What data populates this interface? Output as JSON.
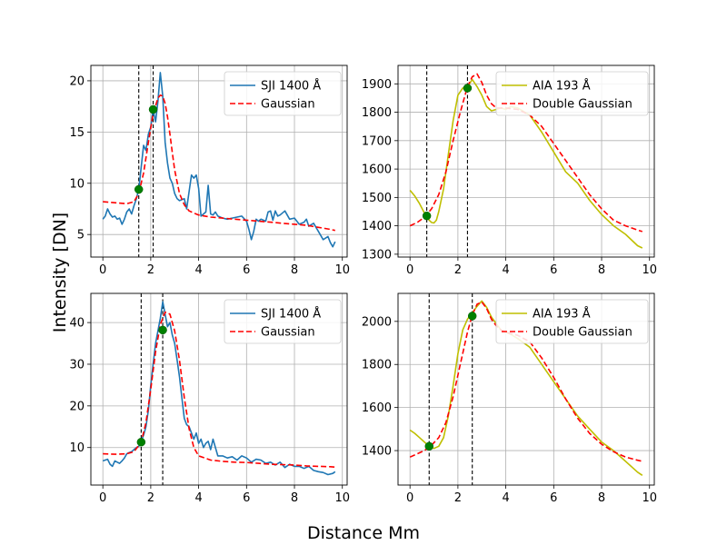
{
  "figure": {
    "xlabel": "Distance Mm",
    "ylabel": "Intensity [DN]"
  },
  "chart_data": [
    {
      "type": "line",
      "panel": "top-left",
      "xlim": [
        -0.5,
        10.2
      ],
      "ylim": [
        2.8,
        21.5
      ],
      "xticks": [
        0,
        2,
        4,
        6,
        8,
        10
      ],
      "yticks": [
        5,
        10,
        15,
        20
      ],
      "grid": true,
      "legend_position": "top-right",
      "series": [
        {
          "name": "SJI 1400 Å",
          "style": "solid",
          "color": "#1f77b4",
          "x": [
            0,
            0.1,
            0.2,
            0.3,
            0.4,
            0.5,
            0.6,
            0.7,
            0.8,
            0.9,
            1.0,
            1.1,
            1.2,
            1.3,
            1.4,
            1.5,
            1.6,
            1.7,
            1.8,
            1.9,
            2.0,
            2.1,
            2.2,
            2.3,
            2.4,
            2.5,
            2.6,
            2.7,
            2.8,
            2.9,
            3.0,
            3.1,
            3.2,
            3.3,
            3.4,
            3.5,
            3.6,
            3.7,
            3.8,
            3.9,
            4.0,
            4.1,
            4.2,
            4.3,
            4.4,
            4.5,
            4.6,
            4.7,
            4.8,
            5.0,
            5.2,
            5.4,
            5.6,
            5.8,
            6.0,
            6.1,
            6.2,
            6.3,
            6.4,
            6.5,
            6.6,
            6.7,
            6.8,
            6.9,
            7.0,
            7.1,
            7.2,
            7.3,
            7.4,
            7.6,
            7.8,
            8.0,
            8.2,
            8.4,
            8.5,
            8.6,
            8.8,
            9.0,
            9.2,
            9.4,
            9.5,
            9.6,
            9.7
          ],
          "y": [
            6.5,
            6.8,
            7.5,
            7.0,
            6.7,
            6.8,
            6.5,
            6.6,
            6.0,
            6.5,
            7.2,
            7.5,
            7.0,
            7.8,
            8.5,
            9.4,
            11.5,
            13.7,
            13.2,
            14.8,
            15.5,
            17.2,
            16.0,
            18.0,
            20.8,
            18.5,
            14.0,
            12.0,
            10.5,
            10.0,
            9.0,
            8.5,
            8.3,
            8.4,
            8.5,
            7.5,
            9.2,
            10.8,
            10.5,
            10.8,
            9.5,
            6.8,
            7.0,
            7.2,
            9.8,
            7.0,
            6.9,
            7.2,
            6.8,
            6.6,
            6.5,
            6.6,
            6.7,
            6.8,
            6.3,
            5.5,
            4.5,
            5.3,
            6.5,
            6.3,
            6.5,
            6.4,
            6.3,
            7.2,
            7.3,
            6.4,
            7.3,
            6.8,
            6.9,
            7.3,
            6.5,
            6.6,
            6.0,
            6.2,
            6.5,
            5.8,
            6.1,
            5.3,
            4.5,
            4.8,
            4.2,
            3.8,
            4.3
          ]
        },
        {
          "name": "Gaussian",
          "style": "dashed",
          "color": "#ff0000",
          "x": [
            0,
            0.5,
            1.0,
            1.3,
            1.5,
            1.7,
            1.9,
            2.1,
            2.3,
            2.4,
            2.5,
            2.6,
            2.7,
            2.8,
            2.9,
            3.0,
            3.2,
            3.4,
            3.6,
            3.8,
            4.0,
            4.5,
            5.0,
            5.5,
            6.0,
            6.5,
            7.0,
            7.5,
            8.0,
            8.5,
            9.0,
            9.5,
            9.7
          ],
          "y": [
            8.2,
            8.1,
            8.0,
            8.2,
            9.0,
            11.0,
            14.0,
            16.8,
            18.3,
            18.6,
            18.5,
            17.8,
            16.5,
            14.8,
            13.0,
            11.3,
            9.0,
            7.9,
            7.3,
            7.1,
            6.9,
            6.7,
            6.6,
            6.5,
            6.4,
            6.3,
            6.2,
            6.1,
            6.0,
            5.9,
            5.7,
            5.5,
            5.4
          ]
        }
      ],
      "vlines": [
        1.5,
        2.1
      ],
      "markers": [
        {
          "x": 1.5,
          "y": 9.4
        },
        {
          "x": 2.1,
          "y": 17.2
        }
      ]
    },
    {
      "type": "line",
      "panel": "top-right",
      "xlim": [
        -0.5,
        10.2
      ],
      "ylim": [
        1290,
        1965
      ],
      "xticks": [
        0,
        2,
        4,
        6,
        8,
        10
      ],
      "yticks": [
        1300,
        1400,
        1500,
        1600,
        1700,
        1800,
        1900
      ],
      "grid": true,
      "legend_position": "top-right",
      "series": [
        {
          "name": "AIA 193 Å",
          "style": "solid",
          "color": "#bfbf00",
          "x": [
            0,
            0.2,
            0.4,
            0.6,
            0.8,
            0.9,
            1.0,
            1.1,
            1.2,
            1.4,
            1.6,
            1.8,
            2.0,
            2.2,
            2.4,
            2.6,
            2.8,
            3.0,
            3.2,
            3.4,
            3.6,
            3.8,
            4.0,
            4.2,
            4.5,
            5.0,
            5.5,
            6.0,
            6.5,
            7.0,
            7.5,
            8.0,
            8.5,
            9.0,
            9.5,
            9.7
          ],
          "y": [
            1525,
            1505,
            1478,
            1445,
            1420,
            1412,
            1410,
            1420,
            1450,
            1530,
            1650,
            1770,
            1860,
            1885,
            1890,
            1915,
            1890,
            1860,
            1820,
            1805,
            1810,
            1815,
            1810,
            1820,
            1815,
            1790,
            1730,
            1660,
            1590,
            1550,
            1490,
            1440,
            1400,
            1370,
            1330,
            1322
          ]
        },
        {
          "name": "Double Gaussian",
          "style": "dashed",
          "color": "#ff0000",
          "x": [
            0,
            0.3,
            0.6,
            0.9,
            1.2,
            1.5,
            1.8,
            2.1,
            2.4,
            2.6,
            2.8,
            3.0,
            3.2,
            3.4,
            3.6,
            3.8,
            4.0,
            4.5,
            5.0,
            5.5,
            6.0,
            6.5,
            7.0,
            7.5,
            8.0,
            8.5,
            9.0,
            9.5,
            9.7
          ],
          "y": [
            1400,
            1412,
            1430,
            1460,
            1510,
            1590,
            1700,
            1800,
            1890,
            1925,
            1935,
            1905,
            1860,
            1830,
            1815,
            1815,
            1815,
            1810,
            1790,
            1750,
            1690,
            1630,
            1570,
            1510,
            1460,
            1420,
            1400,
            1385,
            1380
          ]
        }
      ],
      "vlines": [
        0.7,
        2.4
      ],
      "markers": [
        {
          "x": 0.7,
          "y": 1435
        },
        {
          "x": 2.4,
          "y": 1885
        }
      ]
    },
    {
      "type": "line",
      "panel": "bottom-left",
      "xlim": [
        -0.5,
        10.2
      ],
      "ylim": [
        1,
        47
      ],
      "xticks": [
        0,
        2,
        4,
        6,
        8,
        10
      ],
      "yticks": [
        10,
        20,
        30,
        40
      ],
      "grid": true,
      "legend_position": "top-right",
      "series": [
        {
          "name": "SJI 1400 Å",
          "style": "solid",
          "color": "#1f77b4",
          "x": [
            0,
            0.1,
            0.2,
            0.3,
            0.4,
            0.5,
            0.6,
            0.7,
            0.8,
            0.9,
            1.0,
            1.1,
            1.2,
            1.3,
            1.4,
            1.5,
            1.6,
            1.7,
            1.8,
            1.9,
            2.0,
            2.1,
            2.2,
            2.3,
            2.4,
            2.5,
            2.6,
            2.7,
            2.8,
            2.9,
            3.0,
            3.1,
            3.2,
            3.3,
            3.4,
            3.5,
            3.6,
            3.7,
            3.8,
            3.9,
            4.0,
            4.1,
            4.2,
            4.3,
            4.4,
            4.5,
            4.6,
            4.8,
            5.0,
            5.2,
            5.4,
            5.6,
            5.8,
            6.0,
            6.2,
            6.4,
            6.6,
            6.8,
            7.0,
            7.2,
            7.4,
            7.6,
            7.8,
            8.0,
            8.2,
            8.4,
            8.6,
            8.8,
            9.0,
            9.2,
            9.4,
            9.6,
            9.7
          ],
          "y": [
            6.8,
            7.0,
            7.2,
            6.0,
            5.5,
            6.8,
            6.5,
            6.2,
            6.8,
            7.5,
            8.5,
            8.8,
            9.0,
            9.5,
            10.0,
            10.3,
            11.5,
            13.0,
            15.0,
            19.0,
            25.0,
            30.0,
            35.0,
            38.0,
            41.0,
            45.0,
            42.0,
            39.0,
            40.0,
            37.0,
            35.0,
            31.0,
            27.0,
            22.0,
            17.0,
            15.5,
            15.0,
            13.5,
            12.0,
            13.5,
            11.0,
            12.0,
            10.0,
            11.0,
            11.5,
            9.5,
            12.0,
            8.0,
            8.0,
            7.5,
            7.8,
            7.0,
            8.0,
            7.5,
            6.5,
            7.2,
            7.0,
            6.2,
            6.5,
            5.8,
            6.5,
            5.2,
            6.0,
            5.5,
            5.5,
            5.0,
            5.5,
            4.5,
            4.2,
            4.0,
            3.5,
            3.8,
            4.2
          ]
        },
        {
          "name": "Gaussian",
          "style": "dashed",
          "color": "#ff0000",
          "x": [
            0,
            0.5,
            1.0,
            1.3,
            1.6,
            1.8,
            2.0,
            2.2,
            2.4,
            2.6,
            2.8,
            3.0,
            3.2,
            3.4,
            3.6,
            3.8,
            4.0,
            4.5,
            5.0,
            5.5,
            6.0,
            6.5,
            7.0,
            7.5,
            8.0,
            8.5,
            9.0,
            9.5,
            9.7
          ],
          "y": [
            8.5,
            8.4,
            8.5,
            9.0,
            11.2,
            16.0,
            24.0,
            33.0,
            39.5,
            42.5,
            42.0,
            38.0,
            31.0,
            22.0,
            14.5,
            10.0,
            8.0,
            7.0,
            6.7,
            6.5,
            6.4,
            6.2,
            6.0,
            5.9,
            5.8,
            5.6,
            5.5,
            5.4,
            5.3
          ]
        }
      ],
      "vlines": [
        1.6,
        2.5
      ],
      "markers": [
        {
          "x": 1.6,
          "y": 11.3
        },
        {
          "x": 2.5,
          "y": 38.2
        }
      ]
    },
    {
      "type": "line",
      "panel": "bottom-right",
      "xlim": [
        -0.5,
        10.2
      ],
      "ylim": [
        1240,
        2130
      ],
      "xticks": [
        0,
        2,
        4,
        6,
        8,
        10
      ],
      "yticks": [
        1400,
        1600,
        1800,
        2000
      ],
      "grid": true,
      "legend_position": "top-right",
      "series": [
        {
          "name": "AIA 193 Å",
          "style": "solid",
          "color": "#bfbf00",
          "x": [
            0,
            0.2,
            0.4,
            0.6,
            0.8,
            1.0,
            1.2,
            1.4,
            1.6,
            1.8,
            2.0,
            2.2,
            2.4,
            2.6,
            2.8,
            3.0,
            3.2,
            3.4,
            3.6,
            3.8,
            4.0,
            4.2,
            4.5,
            5.0,
            5.5,
            6.0,
            6.5,
            7.0,
            7.5,
            8.0,
            8.5,
            9.0,
            9.5,
            9.7
          ],
          "y": [
            1495,
            1480,
            1460,
            1440,
            1420,
            1410,
            1420,
            1460,
            1560,
            1700,
            1850,
            1960,
            2010,
            2040,
            2070,
            2095,
            2065,
            2020,
            1990,
            1960,
            1950,
            1940,
            1920,
            1880,
            1800,
            1720,
            1640,
            1560,
            1500,
            1440,
            1400,
            1350,
            1300,
            1285
          ]
        },
        {
          "name": "Double Gaussian",
          "style": "dashed",
          "color": "#ff0000",
          "x": [
            0,
            0.3,
            0.6,
            0.9,
            1.2,
            1.5,
            1.8,
            2.1,
            2.4,
            2.6,
            2.8,
            3.0,
            3.2,
            3.4,
            3.6,
            3.8,
            4.0,
            4.5,
            5.0,
            5.5,
            6.0,
            6.5,
            7.0,
            7.5,
            8.0,
            8.5,
            9.0,
            9.5,
            9.7
          ],
          "y": [
            1370,
            1385,
            1400,
            1425,
            1460,
            1530,
            1650,
            1800,
            1950,
            2030,
            2080,
            2090,
            2060,
            2010,
            1980,
            1960,
            1950,
            1935,
            1905,
            1830,
            1740,
            1640,
            1550,
            1480,
            1430,
            1395,
            1370,
            1355,
            1350
          ]
        }
      ],
      "vlines": [
        0.8,
        2.6
      ],
      "markers": [
        {
          "x": 0.8,
          "y": 1420
        },
        {
          "x": 2.6,
          "y": 2025
        }
      ]
    }
  ]
}
